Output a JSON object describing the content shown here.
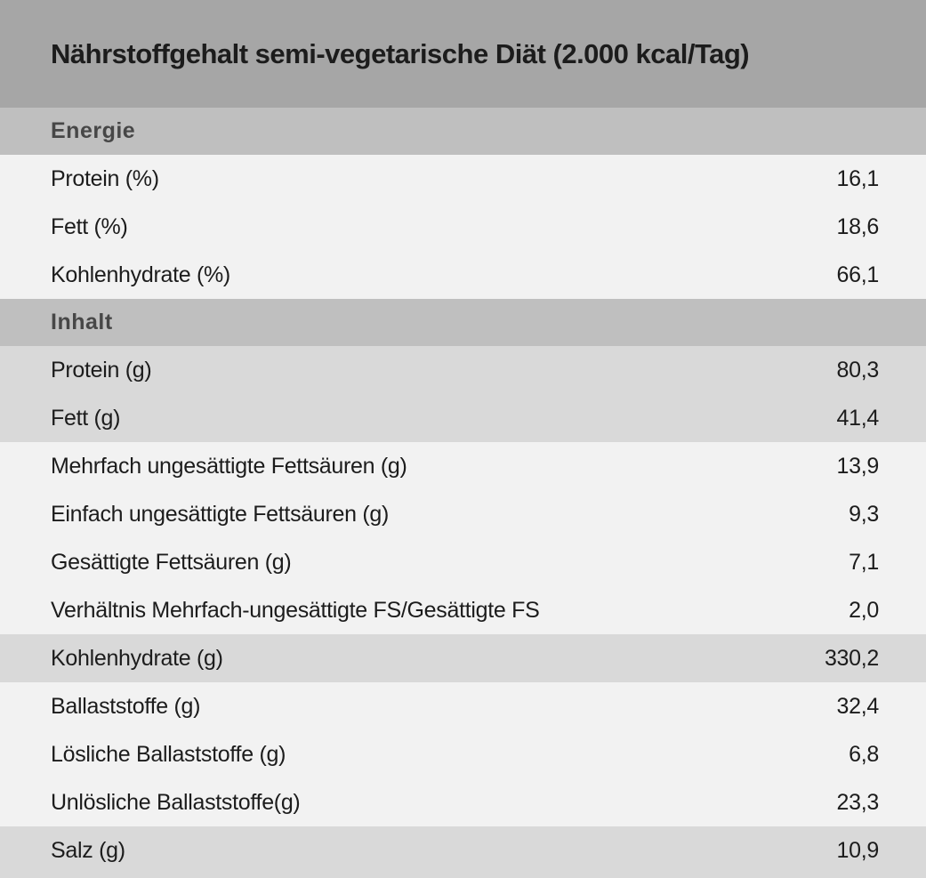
{
  "table": {
    "title": "Nährstoffgehalt semi-vegetarische Diät (2.000 kcal/Tag)",
    "sections": [
      {
        "header": "Energie",
        "rows": [
          {
            "label": "Protein (%)",
            "value": "16,1",
            "highlight": false
          },
          {
            "label": "Fett (%)",
            "value": "18,6",
            "highlight": false
          },
          {
            "label": "Kohlenhydrate (%)",
            "value": "66,1",
            "highlight": false
          }
        ]
      },
      {
        "header": "Inhalt",
        "rows": [
          {
            "label": "Protein (g)",
            "value": "80,3",
            "highlight": true
          },
          {
            "label": "Fett (g)",
            "value": "41,4",
            "highlight": true
          },
          {
            "label": "Mehrfach ungesättigte Fettsäuren (g)",
            "value": "13,9",
            "highlight": false
          },
          {
            "label": "Einfach ungesättigte Fettsäuren (g)",
            "value": "9,3",
            "highlight": false
          },
          {
            "label": "Gesättigte Fettsäuren (g)",
            "value": "7,1",
            "highlight": false
          },
          {
            "label": "Verhältnis Mehrfach-ungesättigte FS/Gesättigte FS",
            "value": "2,0",
            "highlight": false
          },
          {
            "label": "Kohlenhydrate (g)",
            "value": "330,2",
            "highlight": true
          },
          {
            "label": "Ballaststoffe (g)",
            "value": "32,4",
            "highlight": false
          },
          {
            "label": "Lösliche Ballaststoffe (g)",
            "value": "6,8",
            "highlight": false
          },
          {
            "label": "Unlösliche Ballaststoffe(g)",
            "value": "23,3",
            "highlight": false
          },
          {
            "label": "Salz (g)",
            "value": "10,9",
            "highlight": true
          }
        ]
      }
    ]
  },
  "colors": {
    "title_bg": "#a6a6a6",
    "section_bg": "#bfbfbf",
    "row_bg": "#f2f2f2",
    "highlight_bg": "#d9d9d9",
    "title_text": "#1c1c1c",
    "section_text": "#474747",
    "row_text": "#1c1c1c"
  },
  "chart_data": {
    "type": "table",
    "title": "Nährstoffgehalt semi-vegetarische Diät (2.000 kcal/Tag)",
    "sections": [
      {
        "header": "Energie",
        "rows": [
          {
            "label": "Protein (%)",
            "value": 16.1
          },
          {
            "label": "Fett (%)",
            "value": 18.6
          },
          {
            "label": "Kohlenhydrate (%)",
            "value": 66.1
          }
        ]
      },
      {
        "header": "Inhalt",
        "rows": [
          {
            "label": "Protein (g)",
            "value": 80.3
          },
          {
            "label": "Fett (g)",
            "value": 41.4
          },
          {
            "label": "Mehrfach ungesättigte Fettsäuren (g)",
            "value": 13.9
          },
          {
            "label": "Einfach ungesättigte Fettsäuren (g)",
            "value": 9.3
          },
          {
            "label": "Gesättigte Fettsäuren (g)",
            "value": 7.1
          },
          {
            "label": "Verhältnis Mehrfach-ungesättigte FS/Gesättigte FS",
            "value": 2.0
          },
          {
            "label": "Kohlenhydrate (g)",
            "value": 330.2
          },
          {
            "label": "Ballaststoffe (g)",
            "value": 32.4
          },
          {
            "label": "Lösliche Ballaststoffe (g)",
            "value": 6.8
          },
          {
            "label": "Unlösliche Ballaststoffe(g)",
            "value": 23.3
          },
          {
            "label": "Salz (g)",
            "value": 10.9
          }
        ]
      }
    ],
    "number_format": "de-DE (comma decimal separator)",
    "layout_hints": {
      "value_alignment": "right",
      "highlighted_rows": [
        "Protein (g)",
        "Fett (g)",
        "Kohlenhydrate (g)",
        "Salz (g)"
      ],
      "last_row_clipped_at_bottom": true
    }
  }
}
